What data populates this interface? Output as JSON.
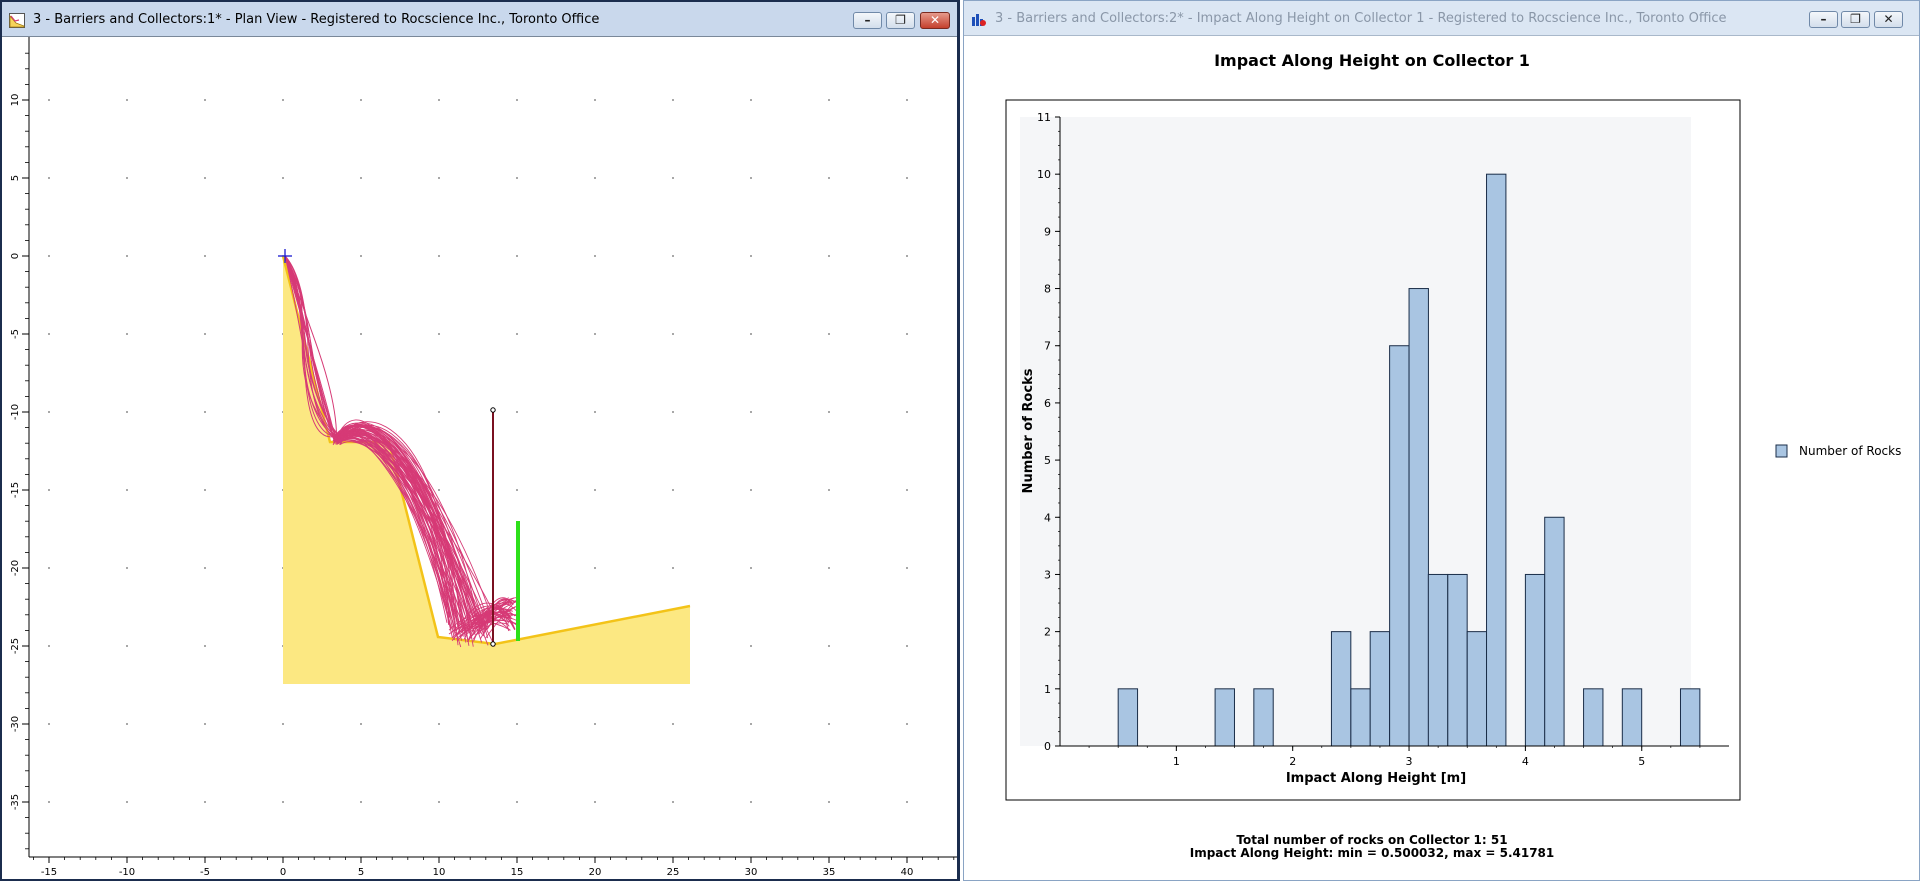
{
  "windows": {
    "plan_view": {
      "title": "3 - Barriers and Collectors:1* - Plan View - Registered to Rocscience Inc., Toronto Office",
      "x_ticks": [
        "-15",
        "-10",
        "-5",
        "0",
        "5",
        "10",
        "15",
        "20",
        "25",
        "30",
        "35",
        "40"
      ],
      "y_ticks": [
        "10",
        "5",
        "0",
        "-5",
        "-10",
        "-15",
        "-20",
        "-25",
        "-30",
        "-35"
      ],
      "colors": {
        "slope_fill": "#fce882",
        "slope_edge": "#f3c318",
        "rock_paths": "#d63a76",
        "barrier": "#7a1020",
        "collector": "#2de01a",
        "seeder": "#1a1ad0"
      }
    },
    "histogram": {
      "title": "3 - Barriers and Collectors:2* - Impact Along Height on Collector 1 - Registered to Rocscience Inc., Toronto Office",
      "footer_line1": "Total number of rocks on Collector 1:  51",
      "footer_line2": "Impact Along Height:  min = 0.500032,  max = 5.41781"
    }
  },
  "chart_data": {
    "type": "bar",
    "title": "Impact Along Height on Collector 1",
    "xlabel": "Impact Along Height [m]",
    "ylabel": "Number of Rocks",
    "legend": {
      "position": "right",
      "entries": [
        "Number of Rocks"
      ]
    },
    "xlim": [
      0,
      5.75
    ],
    "ylim": [
      0,
      11
    ],
    "x_ticks": [
      "1",
      "2",
      "3",
      "4",
      "5"
    ],
    "y_ticks": [
      "0",
      "1",
      "2",
      "3",
      "4",
      "5",
      "6",
      "7",
      "8",
      "9",
      "10",
      "11"
    ],
    "bin_width": 0.1666,
    "bins": [
      {
        "start": 0.5,
        "count": 1
      },
      {
        "start": 1.333,
        "count": 1
      },
      {
        "start": 1.666,
        "count": 1
      },
      {
        "start": 2.333,
        "count": 2
      },
      {
        "start": 2.5,
        "count": 1
      },
      {
        "start": 2.666,
        "count": 2
      },
      {
        "start": 2.833,
        "count": 7
      },
      {
        "start": 3.0,
        "count": 8
      },
      {
        "start": 3.166,
        "count": 3
      },
      {
        "start": 3.333,
        "count": 3
      },
      {
        "start": 3.5,
        "count": 2
      },
      {
        "start": 3.666,
        "count": 10
      },
      {
        "start": 4.0,
        "count": 3
      },
      {
        "start": 4.166,
        "count": 4
      },
      {
        "start": 4.5,
        "count": 1
      },
      {
        "start": 4.833,
        "count": 1
      },
      {
        "start": 5.333,
        "count": 1
      }
    ],
    "bar_color": "#a9c5e2",
    "bar_edge": "#1a2d48",
    "plot_background": "#f5f6f8",
    "grid": false
  }
}
